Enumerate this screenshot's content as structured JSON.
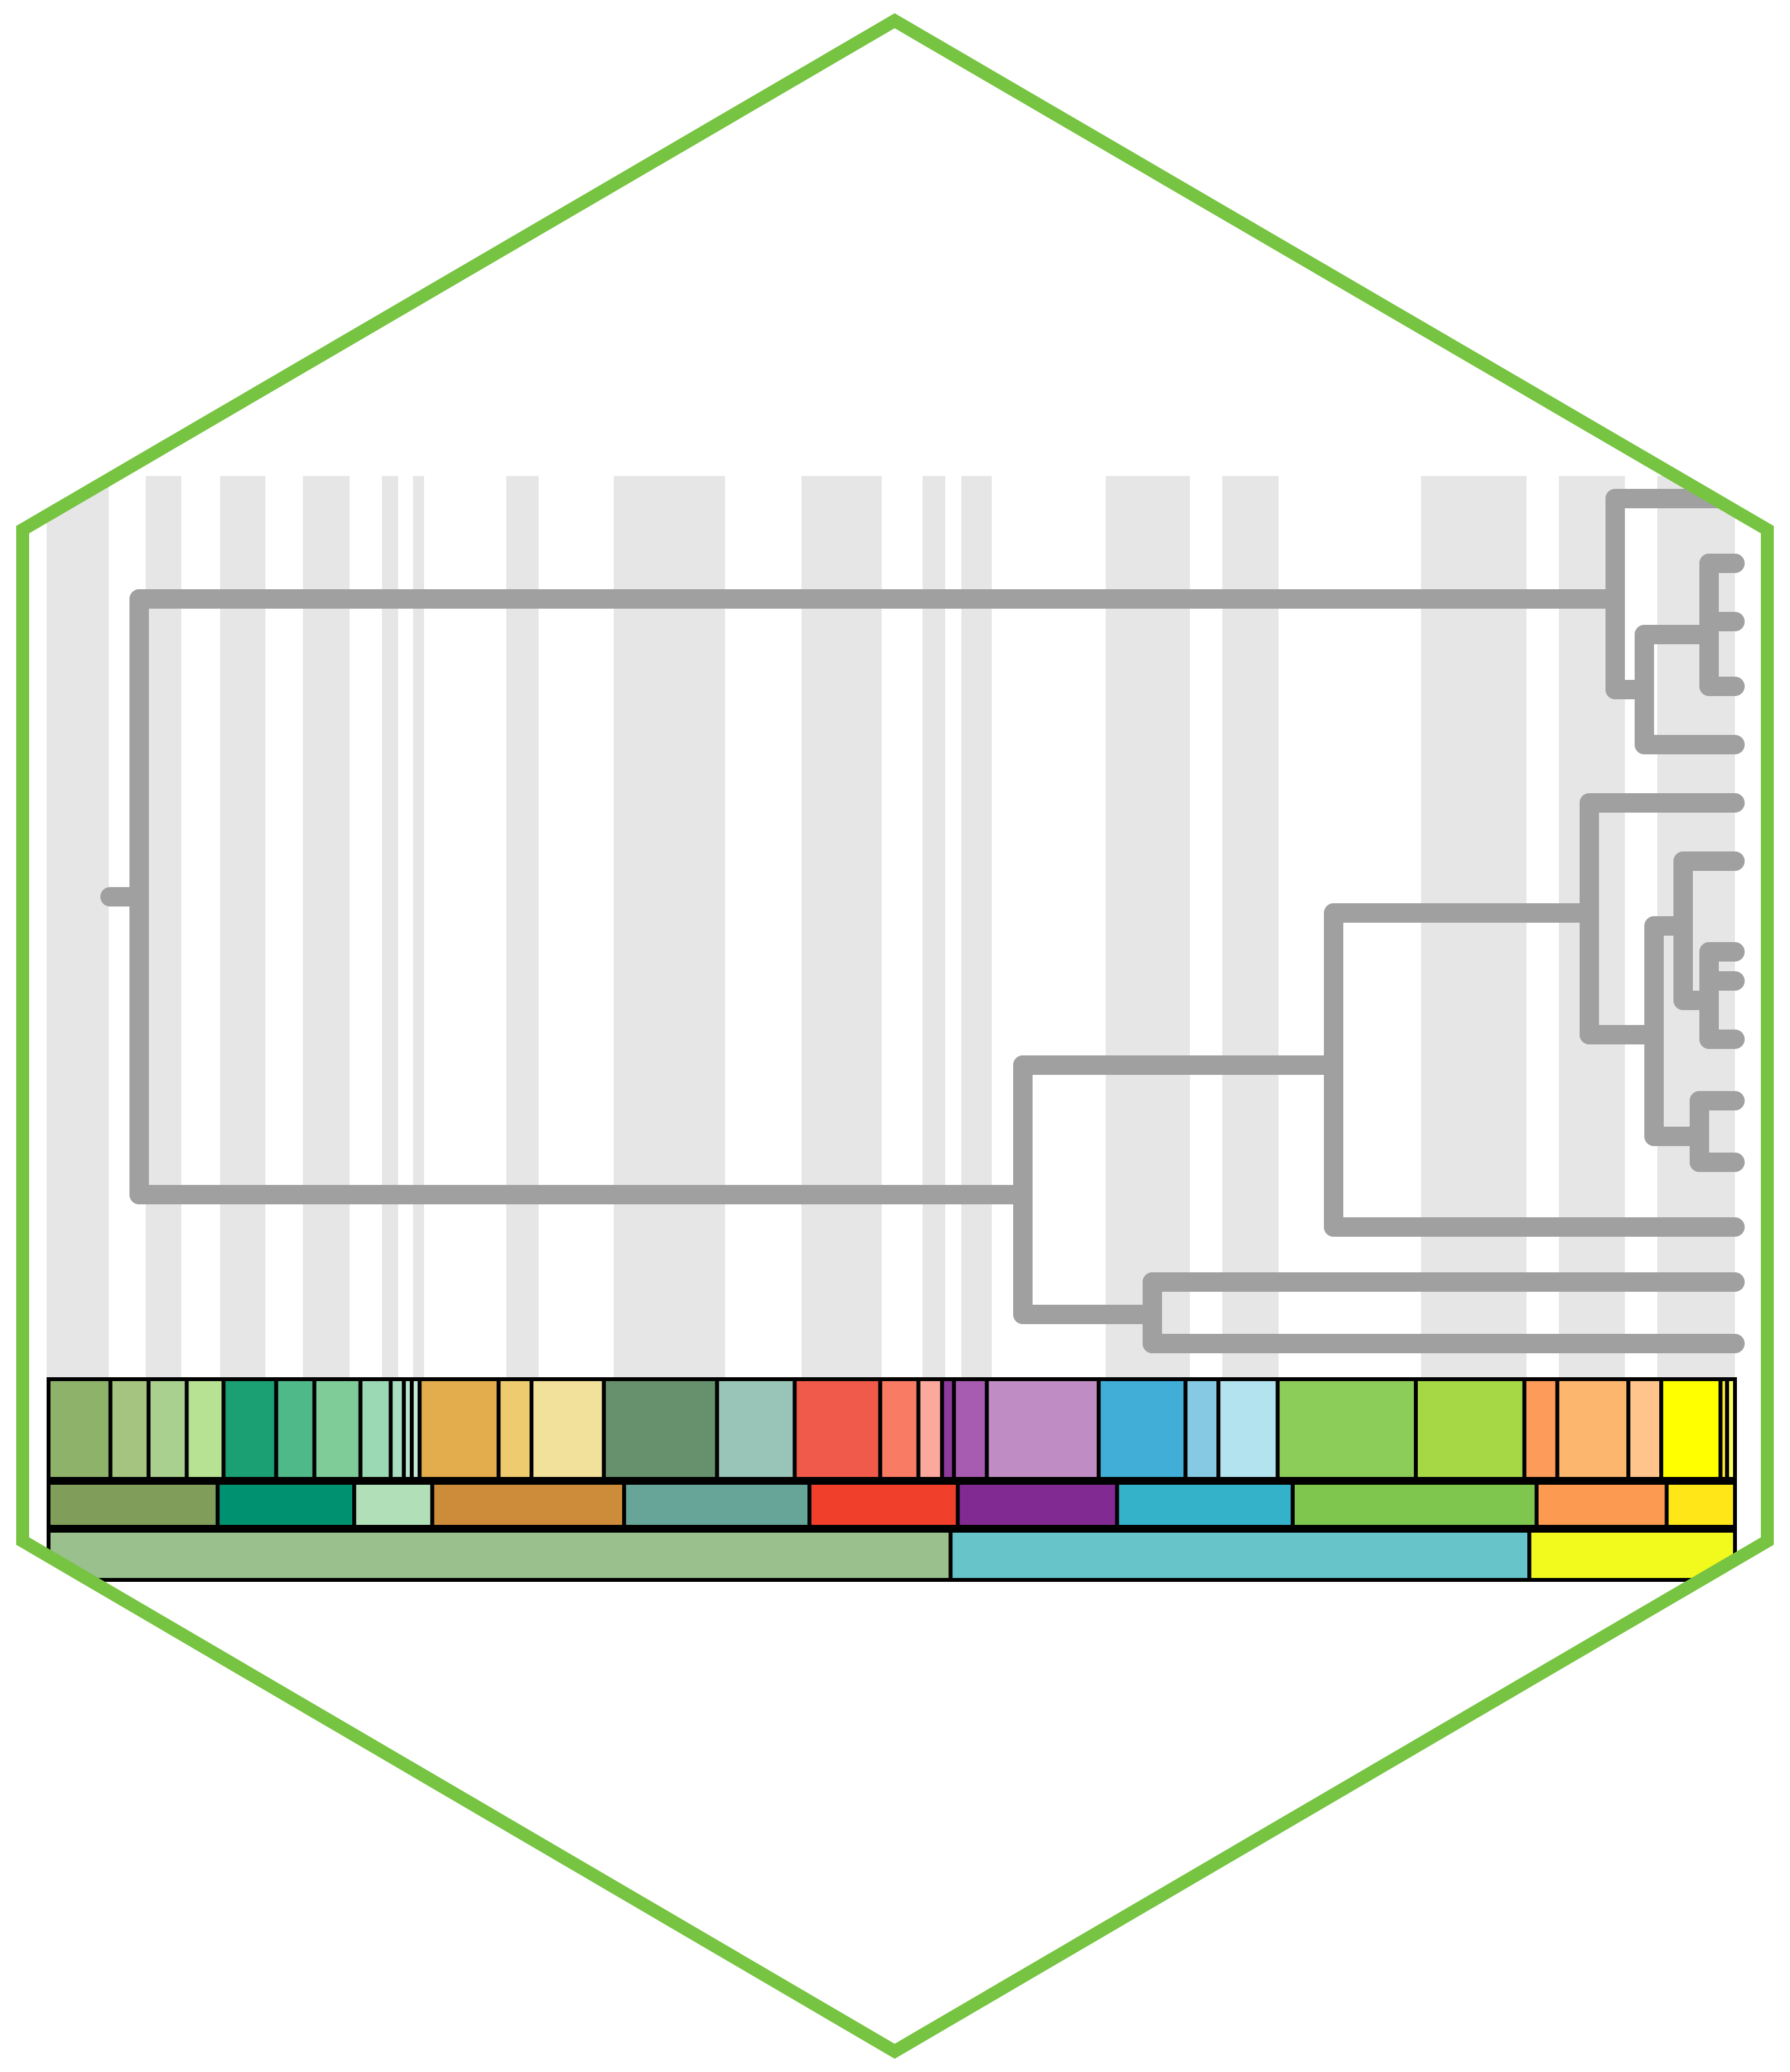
{
  "logo": {
    "type": "hexagon-sticker",
    "description_visible_text": "",
    "colors": {
      "hex_border": "#76c442",
      "tree_stroke": "#a0a0a0",
      "band_fill": "#e6e6e6",
      "cell_border": "#000000",
      "background": "#ffffff"
    },
    "icons": {
      "tree": "phylogenetic-tree-icon",
      "timescale": "geologic-timescale-icon"
    }
  },
  "tree": {
    "tip_count": 14
  },
  "timescale": {
    "levels": 3,
    "row_ages": [
      [
        "#8fb26a",
        "#a5c47f",
        "#a9d08e",
        "#b8e293",
        "#1aa072",
        "#4fb98a",
        "#80cc98",
        "#9bd9b5",
        "#a9dfc0",
        "#b6e4c9",
        "#c4e8d3",
        "#e3ad4d",
        "#eecb6e",
        "#f1e19a",
        "#66916c",
        "#98c5b7",
        "#f05a4a",
        "#f97b64",
        "#fca99d",
        "#8d3b9b",
        "#a85cb1",
        "#bf8dc3",
        "#40aed6",
        "#85c9e3",
        "#b2e3ef",
        "#8ccc59",
        "#a6d846",
        "#fc9b5a",
        "#fdb66e",
        "#fec48b",
        "#ffff00",
        "#ffec30",
        "#ffff66"
      ],
      [
        "#809e5a",
        "#009270",
        "#b1e0b8",
        "#cc8c3a",
        "#67a599",
        "#f0402b",
        "#812b92",
        "#34b2c9",
        "#7fc64e",
        "#fd9a52",
        "#ffe619"
      ],
      [
        "#99c08d",
        "#67c5ca",
        "#f2f91d"
      ]
    ]
  }
}
